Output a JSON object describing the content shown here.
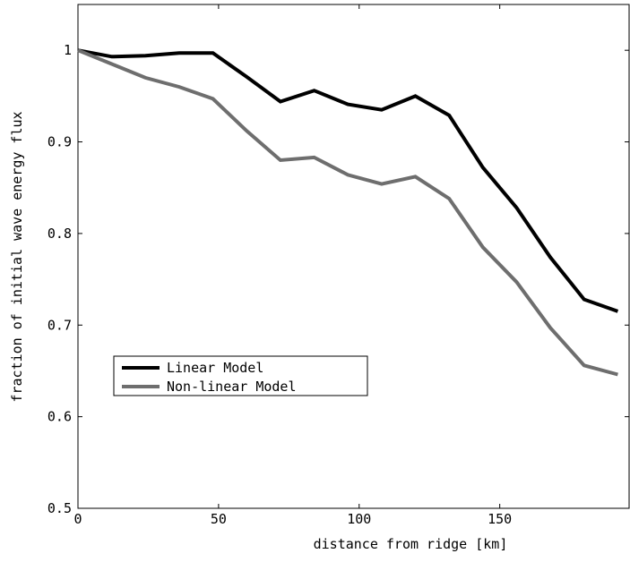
{
  "chart_data": {
    "type": "line",
    "xlabel": "distance from ridge [km]",
    "ylabel": "fraction of initial wave energy flux",
    "xlim": [
      0,
      196
    ],
    "ylim": [
      0.5,
      1.05
    ],
    "xticks": [
      0,
      50,
      100,
      150
    ],
    "xtick_labels": [
      "0",
      "50",
      "100",
      "150"
    ],
    "yticks": [
      0.5,
      0.6,
      0.7,
      0.8,
      0.9,
      1.0
    ],
    "ytick_labels": [
      "0.5",
      "0.6",
      "0.7",
      "0.8",
      "0.9",
      "1"
    ],
    "grid": false,
    "legend_position": "lower-left",
    "x": [
      0,
      12,
      24,
      36,
      48,
      60,
      72,
      84,
      96,
      108,
      120,
      132,
      144,
      156,
      168,
      180,
      192
    ],
    "series": [
      {
        "name": "Linear Model",
        "color": "#000000",
        "values": [
          1.0,
          0.993,
          0.994,
          0.997,
          0.997,
          0.971,
          0.944,
          0.956,
          0.941,
          0.935,
          0.95,
          0.929,
          0.872,
          0.828,
          0.774,
          0.728,
          0.715
        ]
      },
      {
        "name": "Non-linear Model",
        "color": "#6e6e6e",
        "values": [
          1.0,
          0.985,
          0.97,
          0.96,
          0.947,
          0.912,
          0.88,
          0.883,
          0.864,
          0.854,
          0.862,
          0.838,
          0.785,
          0.747,
          0.697,
          0.656,
          0.646
        ]
      }
    ]
  }
}
